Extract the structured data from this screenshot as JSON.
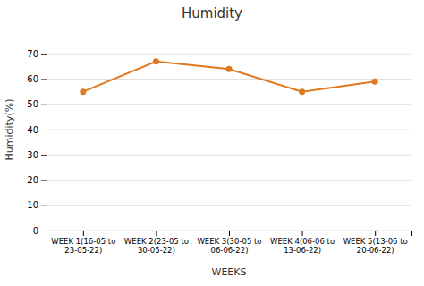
{
  "chart_data": {
    "type": "line",
    "title": "Humidity",
    "xlabel": "WEEKS",
    "ylabel": "Humidity(%)",
    "categories": [
      "WEEK 1(16-05 to\n23-05-22)",
      "WEEK 2(23-05 to\n30-05-22)",
      "WEEK 3(30-05 to\n06-06-22)",
      "WEEK 4(06-06 to\n13-06-22)",
      "WEEK 5(13-06 to\n20-06-22)"
    ],
    "values": [
      55,
      67,
      64,
      55,
      59
    ],
    "color": "#E07820",
    "marker": "circle",
    "ylim": [
      0,
      80
    ],
    "yticks": [
      0,
      10,
      20,
      30,
      40,
      50,
      60,
      70
    ],
    "grid": true
  }
}
